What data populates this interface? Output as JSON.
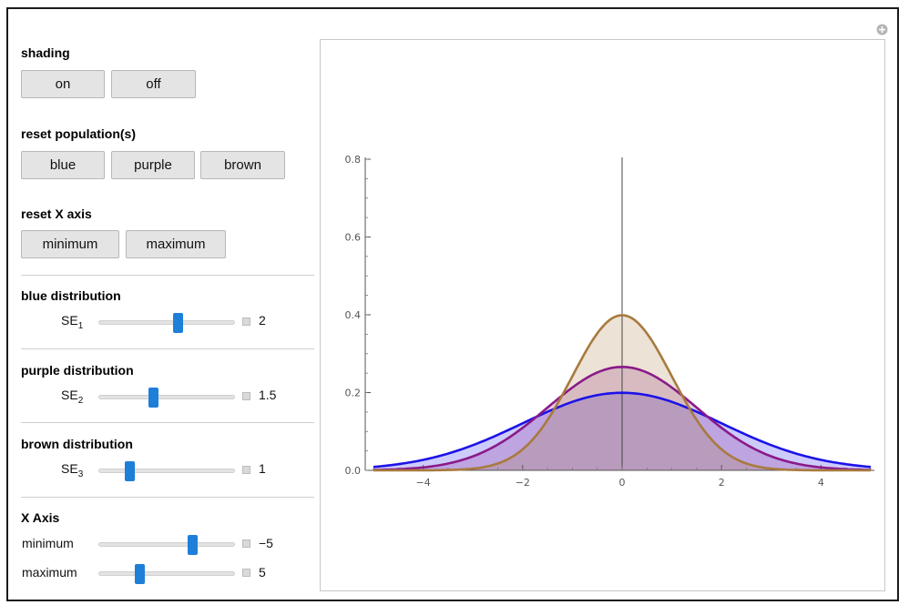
{
  "shading": {
    "label": "shading",
    "on_label": "on",
    "off_label": "off"
  },
  "reset_population": {
    "label": "reset population(s)",
    "blue_label": "blue",
    "purple_label": "purple",
    "brown_label": "brown"
  },
  "reset_x_axis": {
    "label": "reset X axis",
    "minimum_label": "minimum",
    "maximum_label": "maximum"
  },
  "blue_distribution": {
    "label": "blue distribution",
    "control_base": "SE",
    "control_sub": "1",
    "value": "2",
    "slider_fraction": 0.58
  },
  "purple_distribution": {
    "label": "purple distribution",
    "control_base": "SE",
    "control_sub": "2",
    "value": "1.5",
    "slider_fraction": 0.4
  },
  "brown_distribution": {
    "label": "brown distribution",
    "control_base": "SE",
    "control_sub": "3",
    "value": "1",
    "slider_fraction": 0.22
  },
  "x_axis": {
    "label": "X Axis",
    "minimum": {
      "label": "minimum",
      "value": "−5",
      "slider_fraction": 0.69
    },
    "maximum": {
      "label": "maximum",
      "value": "5",
      "slider_fraction": 0.3
    }
  },
  "colors": {
    "blue": "#1b12e8",
    "purple": "#8a1a8a",
    "brown": "#a87a3e",
    "slider": "#1e7fd9"
  },
  "chart_data": {
    "type": "area",
    "title": "",
    "xlabel": "",
    "ylabel": "",
    "xlim": [
      -5,
      5
    ],
    "ylim": [
      0,
      0.8
    ],
    "x_ticks": [
      "−4",
      "−2",
      "0",
      "2",
      "4"
    ],
    "y_ticks": [
      "0.0",
      "0.2",
      "0.4",
      "0.6",
      "0.8"
    ],
    "series": [
      {
        "color": "#1b12e8",
        "distribution": "normal",
        "mean": 0,
        "sd": 2,
        "peak": 0.2
      },
      {
        "color": "#8a1a8a",
        "distribution": "normal",
        "mean": 0,
        "sd": 1.5,
        "peak": 0.266
      },
      {
        "color": "#a87a3e",
        "distribution": "normal",
        "mean": 0,
        "sd": 1,
        "peak": 0.399
      }
    ],
    "shading": "on"
  }
}
